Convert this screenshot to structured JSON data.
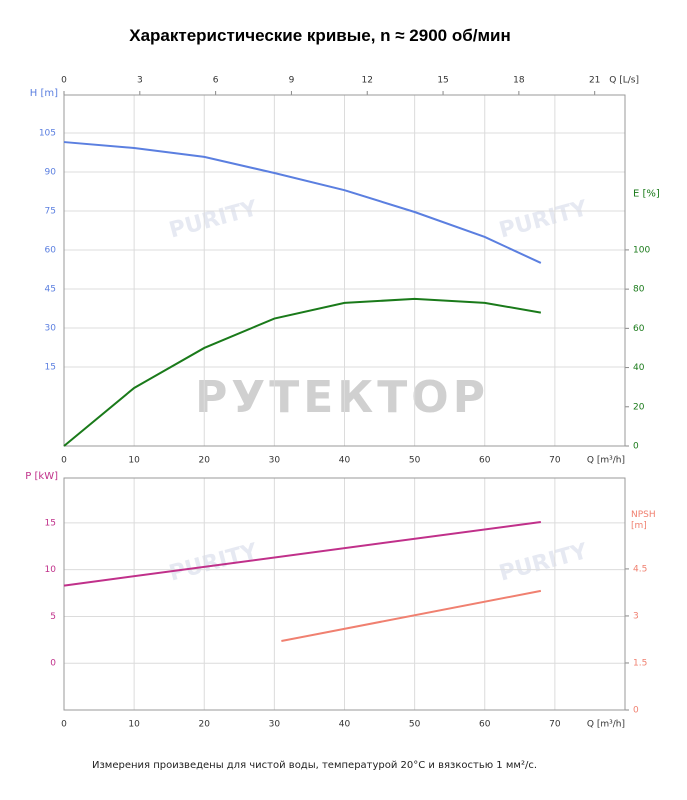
{
  "chart_data": [
    {
      "type": "line",
      "title": "Характеристические кривые, n ≈ 2900 об/мин",
      "xlabel": "Q [m³/h]",
      "xlim": [
        0,
        80
      ],
      "xticks": [
        0,
        10,
        20,
        30,
        40,
        50,
        60,
        70
      ],
      "x2label": "Q [L/s]",
      "x2lim": [
        0,
        22.2
      ],
      "x2ticks": [
        0,
        3,
        6,
        9,
        12,
        15,
        18,
        21
      ],
      "ylabel": "H [m]",
      "ylim": [
        -15.4,
        119.6
      ],
      "yticks": [
        15,
        30,
        45,
        60,
        75,
        90,
        105
      ],
      "y2label": "E [%]",
      "y2lim": [
        0,
        179
      ],
      "y2ticks": [
        0,
        20,
        40,
        60,
        80,
        100
      ],
      "grid": true,
      "series": [
        {
          "name": "H [m]",
          "color": "#5b7fe0",
          "x": [
            0,
            10,
            20,
            30,
            40,
            50,
            60,
            68
          ],
          "values": [
            101.5,
            99.2,
            95.8,
            89.6,
            83,
            74.6,
            65,
            55
          ]
        },
        {
          "name": "E [%]",
          "color": "#1a7a1a",
          "axis": "y2",
          "x": [
            0,
            10,
            20,
            30,
            40,
            50,
            60,
            68
          ],
          "values": [
            0,
            29.6,
            50,
            65,
            73,
            75,
            73,
            68
          ]
        }
      ]
    },
    {
      "type": "line",
      "xlabel": "Q [m³/h]",
      "xlim": [
        0,
        80
      ],
      "xticks": [
        0,
        10,
        20,
        30,
        40,
        50,
        60,
        70
      ],
      "ylabel": "P [kW]",
      "ylim": [
        -5,
        19.8
      ],
      "yticks": [
        0,
        5,
        10,
        15
      ],
      "y2label": "NPSH [m]",
      "y2lim": [
        0,
        7.4
      ],
      "y2ticks": [
        0,
        1.5,
        3,
        4.5
      ],
      "grid": true,
      "series": [
        {
          "name": "P [kW]",
          "color": "#c0308a",
          "x": [
            0,
            68
          ],
          "values": [
            8.3,
            15.1
          ]
        },
        {
          "name": "NPSH [m]",
          "color": "#f08070",
          "axis": "y2",
          "x": [
            31,
            68
          ],
          "values": [
            2.2,
            3.8
          ]
        }
      ]
    }
  ],
  "watermark": {
    "brand": "РУТЕКТОР",
    "logo": "PURITY"
  },
  "footnote": "Измерения произведены для чистой воды, температурой 20°C и вязкостью 1 мм²/с."
}
